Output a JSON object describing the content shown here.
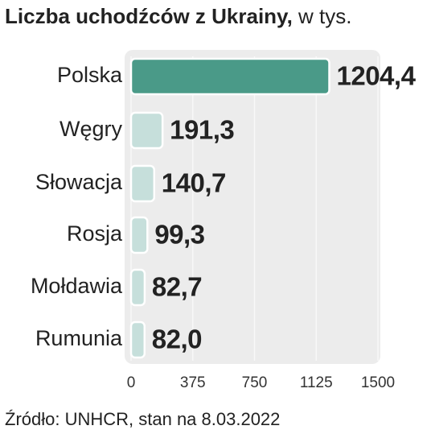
{
  "chart_data": {
    "type": "hbar",
    "title": "Liczba uchodźców z Ukrainy,",
    "subtitle": "w tys.",
    "source": "Źródło: UNHCR, stan na 8.03.2022",
    "categories": [
      "Polska",
      "Węgry",
      "Słowacja",
      "Rosja",
      "Mołdawia",
      "Rumunia"
    ],
    "values": [
      1204.4,
      191.3,
      140.7,
      99.3,
      82.7,
      82.0
    ],
    "value_labels": [
      "1204,4",
      "191,3",
      "140,7",
      "99,3",
      "82,7",
      "82,0"
    ],
    "colors": [
      "#4a9a88",
      "#c6dfdb",
      "#c6dfdb",
      "#c6dfdb",
      "#c6dfdb",
      "#c6dfdb"
    ],
    "xlim": [
      0,
      1500
    ],
    "xticks": [
      0,
      375,
      750,
      1125,
      1500
    ],
    "grid": true
  }
}
